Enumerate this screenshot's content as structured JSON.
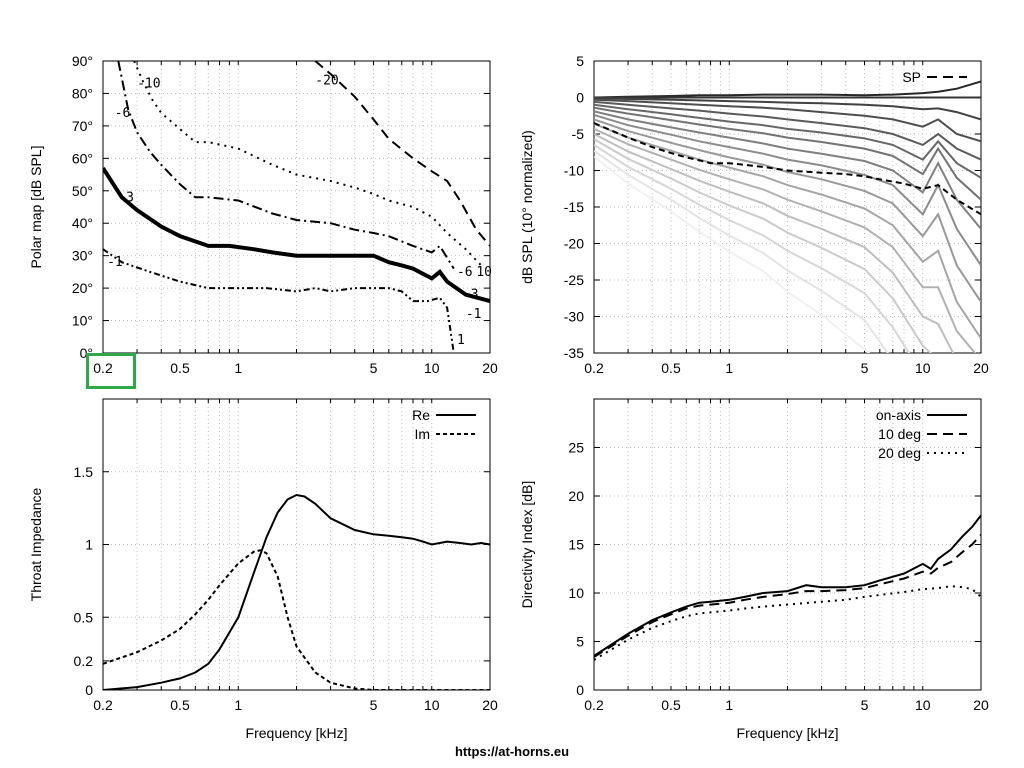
{
  "footer": {
    "url": "https://at-horns.eu"
  },
  "highlight": {
    "color": "#2ea84a",
    "label": "0.2"
  },
  "chart_data": [
    {
      "id": "polar_map",
      "type": "line",
      "ylabel": "Polar map [dB SPL]",
      "xlabel": "",
      "xscale": "log",
      "xlim": [
        0.2,
        20
      ],
      "ylim": [
        0,
        90
      ],
      "xticks": [
        0.2,
        0.5,
        1,
        5,
        10,
        20
      ],
      "xtick_labels": [
        "0.2",
        "0.5",
        "1",
        "5",
        "10",
        "20"
      ],
      "yticks": [
        0,
        10,
        20,
        30,
        40,
        50,
        60,
        70,
        80,
        90
      ],
      "ytick_labels": [
        "0°",
        "10°",
        "20°",
        "30°",
        "40°",
        "50°",
        "60°",
        "70°",
        "80°",
        "90°"
      ],
      "grid": true,
      "contours": [
        {
          "label": "-1",
          "style": "dashdotdot",
          "width": 2,
          "x": [
            0.2,
            0.25,
            0.35,
            0.5,
            0.7,
            1,
            1.4,
            2,
            2.5,
            3,
            4,
            5,
            6,
            7,
            8,
            9.5,
            11,
            12,
            13
          ],
          "y": [
            32,
            28,
            25,
            22,
            20,
            20,
            20,
            19,
            20,
            19,
            20,
            20,
            20,
            19,
            16,
            16,
            17,
            14,
            0
          ],
          "labels": [
            {
              "text": "-1",
              "x": 0.21,
              "y": 28
            },
            {
              "text": "-1",
              "x": 15,
              "y": 12
            },
            {
              "text": "1",
              "x": 13.5,
              "y": 4
            }
          ]
        },
        {
          "label": "-3",
          "style": "solid",
          "width": 4,
          "x": [
            0.2,
            0.25,
            0.3,
            0.4,
            0.5,
            0.7,
            0.9,
            1.2,
            1.5,
            2,
            3,
            4,
            5,
            6,
            7,
            8,
            10,
            11,
            12,
            15,
            20
          ],
          "y": [
            57,
            48,
            44,
            39,
            36,
            33,
            33,
            32,
            31,
            30,
            30,
            30,
            30,
            28,
            27,
            26,
            23,
            25,
            22,
            18,
            16
          ],
          "labels": [
            {
              "text": "-3",
              "x": 0.24,
              "y": 48
            },
            {
              "text": "-3",
              "x": 14.5,
              "y": 18
            }
          ]
        },
        {
          "label": "-6",
          "style": "dashdot",
          "width": 2,
          "x": [
            0.24,
            0.27,
            0.3,
            0.35,
            0.4,
            0.5,
            0.6,
            0.7,
            1,
            1.5,
            2,
            3,
            4,
            5,
            6,
            8,
            10,
            11,
            13
          ],
          "y": [
            90,
            75,
            68,
            62,
            58,
            52,
            48,
            48,
            47,
            43,
            41,
            40,
            38,
            37,
            36,
            33,
            31,
            33,
            26
          ],
          "labels": [
            {
              "text": "-6",
              "x": 0.23,
              "y": 74
            },
            {
              "text": "-6",
              "x": 13.5,
              "y": 25
            }
          ]
        },
        {
          "label": "-10",
          "style": "dotted",
          "width": 2,
          "x": [
            0.29,
            0.32,
            0.36,
            0.4,
            0.5,
            0.6,
            0.7,
            1,
            1.5,
            2,
            3,
            4,
            5,
            6,
            8,
            10,
            12,
            15,
            18
          ],
          "y": [
            90,
            84,
            78,
            74,
            69,
            65,
            65,
            63,
            58,
            55,
            53,
            51,
            49,
            47,
            45,
            42,
            37,
            32,
            27
          ],
          "labels": [
            {
              "text": "-10",
              "x": 0.3,
              "y": 83
            },
            {
              "text": "10",
              "x": 17,
              "y": 25
            }
          ]
        },
        {
          "label": "-20",
          "style": "dashed",
          "width": 2,
          "x": [
            2.5,
            3,
            4,
            5,
            6,
            8,
            10,
            12,
            14,
            17,
            20
          ],
          "y": [
            90,
            86,
            79,
            72,
            66,
            60,
            56,
            53,
            47,
            38,
            33
          ],
          "labels": [
            {
              "text": "-20",
              "x": 2.5,
              "y": 84
            }
          ]
        }
      ]
    },
    {
      "id": "spl_normalized",
      "type": "line",
      "ylabel": "dB SPL (10° normalized)",
      "xlabel": "",
      "xscale": "log",
      "xlim": [
        0.2,
        20
      ],
      "ylim": [
        -35,
        5
      ],
      "xticks": [
        0.2,
        0.5,
        1,
        5,
        10,
        20
      ],
      "xtick_labels": [
        "0.2",
        "0.5",
        "1",
        "5",
        "10",
        "20"
      ],
      "yticks": [
        -35,
        -30,
        -25,
        -20,
        -15,
        -10,
        -5,
        0,
        5
      ],
      "ytick_labels": [
        "-35",
        "-30",
        "-25",
        "-20",
        "-15",
        "-10",
        "-5",
        "0",
        "5"
      ],
      "grid": true,
      "legend": {
        "entries": [
          "SP"
        ],
        "position": "top-right"
      },
      "sp_series": {
        "name": "SP",
        "x": [
          0.2,
          0.3,
          0.4,
          0.5,
          0.6,
          0.7,
          0.8,
          1,
          1.5,
          2,
          3,
          4,
          5,
          6,
          8,
          10,
          12,
          15,
          20
        ],
        "y": [
          -3.5,
          -5.5,
          -6.8,
          -7.6,
          -8.2,
          -8.6,
          -9,
          -9,
          -9.5,
          -10,
          -10.3,
          -10.5,
          -10.8,
          -11.2,
          -11.8,
          -12.5,
          -12,
          -14,
          -16
        ]
      },
      "angle_curves": {
        "note": "normalized polar curves 0°–90°",
        "x": [
          0.2,
          0.3,
          0.5,
          0.7,
          1,
          1.5,
          2,
          3,
          5,
          7,
          10,
          12,
          15,
          20
        ],
        "series": [
          [
            0,
            0.1,
            0.2,
            0.3,
            0.3,
            0.4,
            0.4,
            0.4,
            0.3,
            0.4,
            0.6,
            0.8,
            1.2,
            2.2
          ],
          [
            0,
            0,
            0,
            0,
            0,
            0,
            0,
            0,
            0,
            0,
            0,
            0,
            0,
            0
          ],
          [
            -0.1,
            -0.2,
            -0.3,
            -0.4,
            -0.5,
            -0.6,
            -0.7,
            -0.8,
            -1,
            -1.2,
            -1.6,
            -1.5,
            -2,
            -3
          ],
          [
            -0.3,
            -0.5,
            -0.8,
            -1,
            -1.2,
            -1.4,
            -1.6,
            -2,
            -2.5,
            -3,
            -4,
            -3,
            -5,
            -6
          ],
          [
            -0.6,
            -1,
            -1.5,
            -1.8,
            -2.2,
            -2.6,
            -3,
            -3.5,
            -4.2,
            -5,
            -6.5,
            -5,
            -7,
            -8.5
          ],
          [
            -1,
            -1.6,
            -2.3,
            -2.8,
            -3.3,
            -3.8,
            -4.3,
            -4.8,
            -5.6,
            -6.5,
            -8.5,
            -6,
            -9,
            -11
          ],
          [
            -1.4,
            -2.2,
            -3.1,
            -3.7,
            -4.3,
            -4.9,
            -5.5,
            -6.1,
            -7,
            -8,
            -10.5,
            -7,
            -11,
            -14
          ],
          [
            -1.9,
            -3,
            -4.1,
            -4.8,
            -5.5,
            -6.3,
            -7,
            -7.7,
            -8.7,
            -10,
            -13,
            -9,
            -14,
            -18
          ],
          [
            -2.4,
            -3.8,
            -5.1,
            -6,
            -6.8,
            -7.7,
            -8.5,
            -9.3,
            -10.6,
            -12,
            -16,
            -12,
            -18,
            -23
          ],
          [
            -3,
            -4.6,
            -6.2,
            -7.2,
            -8.2,
            -9.2,
            -10.2,
            -11.2,
            -12.8,
            -14.5,
            -19,
            -16,
            -23,
            -28
          ],
          [
            -3.6,
            -5.5,
            -7.3,
            -8.5,
            -9.6,
            -10.8,
            -12,
            -13.3,
            -15.2,
            -17.5,
            -22.5,
            -21,
            -28,
            -33
          ],
          [
            -4.3,
            -6.4,
            -8.5,
            -9.9,
            -11.2,
            -12.6,
            -14,
            -15.6,
            -17.8,
            -20.5,
            -26,
            -26,
            -32,
            -36
          ],
          [
            -5,
            -7.4,
            -9.8,
            -11.4,
            -12.9,
            -14.5,
            -16.2,
            -18,
            -20.5,
            -24,
            -30,
            -31,
            -36,
            -38
          ],
          [
            -5.7,
            -8.4,
            -11.1,
            -13,
            -14.8,
            -16.6,
            -18.5,
            -20.6,
            -23.5,
            -27.5,
            -34,
            -36,
            -38,
            -38
          ],
          [
            -6.5,
            -9.5,
            -12.5,
            -14.7,
            -16.8,
            -18.9,
            -21,
            -23.4,
            -26.8,
            -31.5,
            -38,
            -38,
            -38,
            -38
          ],
          [
            -7.3,
            -10.6,
            -14,
            -16.5,
            -18.9,
            -21.3,
            -23.7,
            -26.5,
            -30.5,
            -36,
            -38,
            -38,
            -38,
            -38
          ],
          [
            -8.1,
            -11.8,
            -15.6,
            -18.4,
            -21.1,
            -23.8,
            -26.6,
            -29.8,
            -34.5,
            -38,
            -38,
            -38,
            -38,
            -38
          ]
        ]
      }
    },
    {
      "id": "throat_impedance",
      "type": "line",
      "ylabel": "Throat Impedance",
      "xlabel": "Frequency [kHz]",
      "xscale": "log",
      "xlim": [
        0.2,
        20
      ],
      "ylim": [
        0,
        2
      ],
      "xticks": [
        0.2,
        0.5,
        1,
        5,
        10,
        20
      ],
      "xtick_labels": [
        "0.2",
        "0.5",
        "1",
        "5",
        "10",
        "20"
      ],
      "yticks": [
        0,
        0.2,
        0.5,
        1,
        1.5
      ],
      "ytick_labels": [
        "0",
        "0.2",
        "0.5",
        "1",
        "1.5"
      ],
      "grid": true,
      "legend": {
        "entries": [
          "Re",
          "Im"
        ],
        "position": "top-right"
      },
      "series": [
        {
          "name": "Re",
          "style": "solid",
          "x": [
            0.2,
            0.3,
            0.4,
            0.5,
            0.6,
            0.7,
            0.8,
            1,
            1.2,
            1.4,
            1.6,
            1.8,
            2,
            2.2,
            2.5,
            3,
            4,
            5,
            6,
            7,
            8,
            9,
            10,
            12,
            14,
            16,
            18,
            20
          ],
          "y": [
            0,
            0.02,
            0.05,
            0.08,
            0.12,
            0.18,
            0.28,
            0.5,
            0.8,
            1.05,
            1.22,
            1.31,
            1.34,
            1.33,
            1.28,
            1.18,
            1.1,
            1.07,
            1.06,
            1.05,
            1.04,
            1.02,
            1.0,
            1.02,
            1.01,
            1.0,
            1.01,
            1.0
          ]
        },
        {
          "name": "Im",
          "style": "dashed",
          "x": [
            0.2,
            0.3,
            0.4,
            0.5,
            0.6,
            0.7,
            0.8,
            1,
            1.2,
            1.3,
            1.4,
            1.6,
            1.8,
            2,
            2.5,
            3,
            4,
            5,
            6,
            8,
            10,
            20
          ],
          "y": [
            0.18,
            0.26,
            0.34,
            0.42,
            0.52,
            0.62,
            0.72,
            0.87,
            0.95,
            0.96,
            0.94,
            0.78,
            0.5,
            0.3,
            0.12,
            0.05,
            0.01,
            0,
            0,
            0,
            0,
            0
          ]
        }
      ]
    },
    {
      "id": "directivity_index",
      "type": "line",
      "ylabel": "Directivity Index [dB]",
      "xlabel": "Frequency [kHz]",
      "xscale": "log",
      "xlim": [
        0.2,
        20
      ],
      "ylim": [
        0,
        30
      ],
      "xticks": [
        0.2,
        0.5,
        1,
        5,
        10,
        20
      ],
      "xtick_labels": [
        "0.2",
        "0.5",
        "1",
        "5",
        "10",
        "20"
      ],
      "yticks": [
        0,
        5,
        10,
        15,
        20,
        25
      ],
      "ytick_labels": [
        "0",
        "5",
        "10",
        "15",
        "20",
        "25"
      ],
      "grid": true,
      "legend": {
        "entries": [
          "on-axis",
          "10 deg",
          "20 deg"
        ],
        "position": "top-right"
      },
      "series": [
        {
          "name": "on-axis",
          "style": "solid",
          "x": [
            0.2,
            0.3,
            0.4,
            0.5,
            0.6,
            0.7,
            0.8,
            1,
            1.2,
            1.5,
            2,
            2.5,
            3,
            4,
            5,
            6,
            8,
            10,
            11,
            12,
            14,
            16,
            18,
            20
          ],
          "y": [
            3.5,
            5.8,
            7.2,
            8,
            8.6,
            9,
            9.1,
            9.3,
            9.6,
            10,
            10.2,
            10.8,
            10.6,
            10.6,
            10.8,
            11.3,
            12,
            13,
            12.5,
            13.5,
            14.5,
            15.8,
            16.8,
            18
          ]
        },
        {
          "name": "10 deg",
          "style": "dashed",
          "x": [
            0.2,
            0.3,
            0.4,
            0.5,
            0.6,
            0.7,
            0.8,
            1,
            1.2,
            1.5,
            2,
            2.5,
            3,
            4,
            5,
            6,
            8,
            10,
            11,
            12,
            14,
            16,
            18,
            20
          ],
          "y": [
            3.4,
            5.6,
            7,
            7.8,
            8.4,
            8.7,
            8.8,
            9,
            9.3,
            9.6,
            9.9,
            10.2,
            10.2,
            10.3,
            10.5,
            10.9,
            11.5,
            12.2,
            12,
            12.6,
            13.2,
            14.2,
            15,
            16
          ]
        },
        {
          "name": "20 deg",
          "style": "dotted",
          "x": [
            0.2,
            0.3,
            0.4,
            0.5,
            0.6,
            0.7,
            0.8,
            1,
            1.2,
            1.5,
            2,
            3,
            4,
            5,
            6,
            8,
            10,
            12,
            14,
            16,
            18,
            20
          ],
          "y": [
            3.1,
            5.2,
            6.4,
            7.1,
            7.6,
            7.9,
            8,
            8.2,
            8.4,
            8.6,
            8.8,
            9.1,
            9.3,
            9.6,
            9.8,
            10.1,
            10.4,
            10.5,
            10.7,
            10.6,
            10.4,
            9.6
          ]
        }
      ]
    }
  ]
}
